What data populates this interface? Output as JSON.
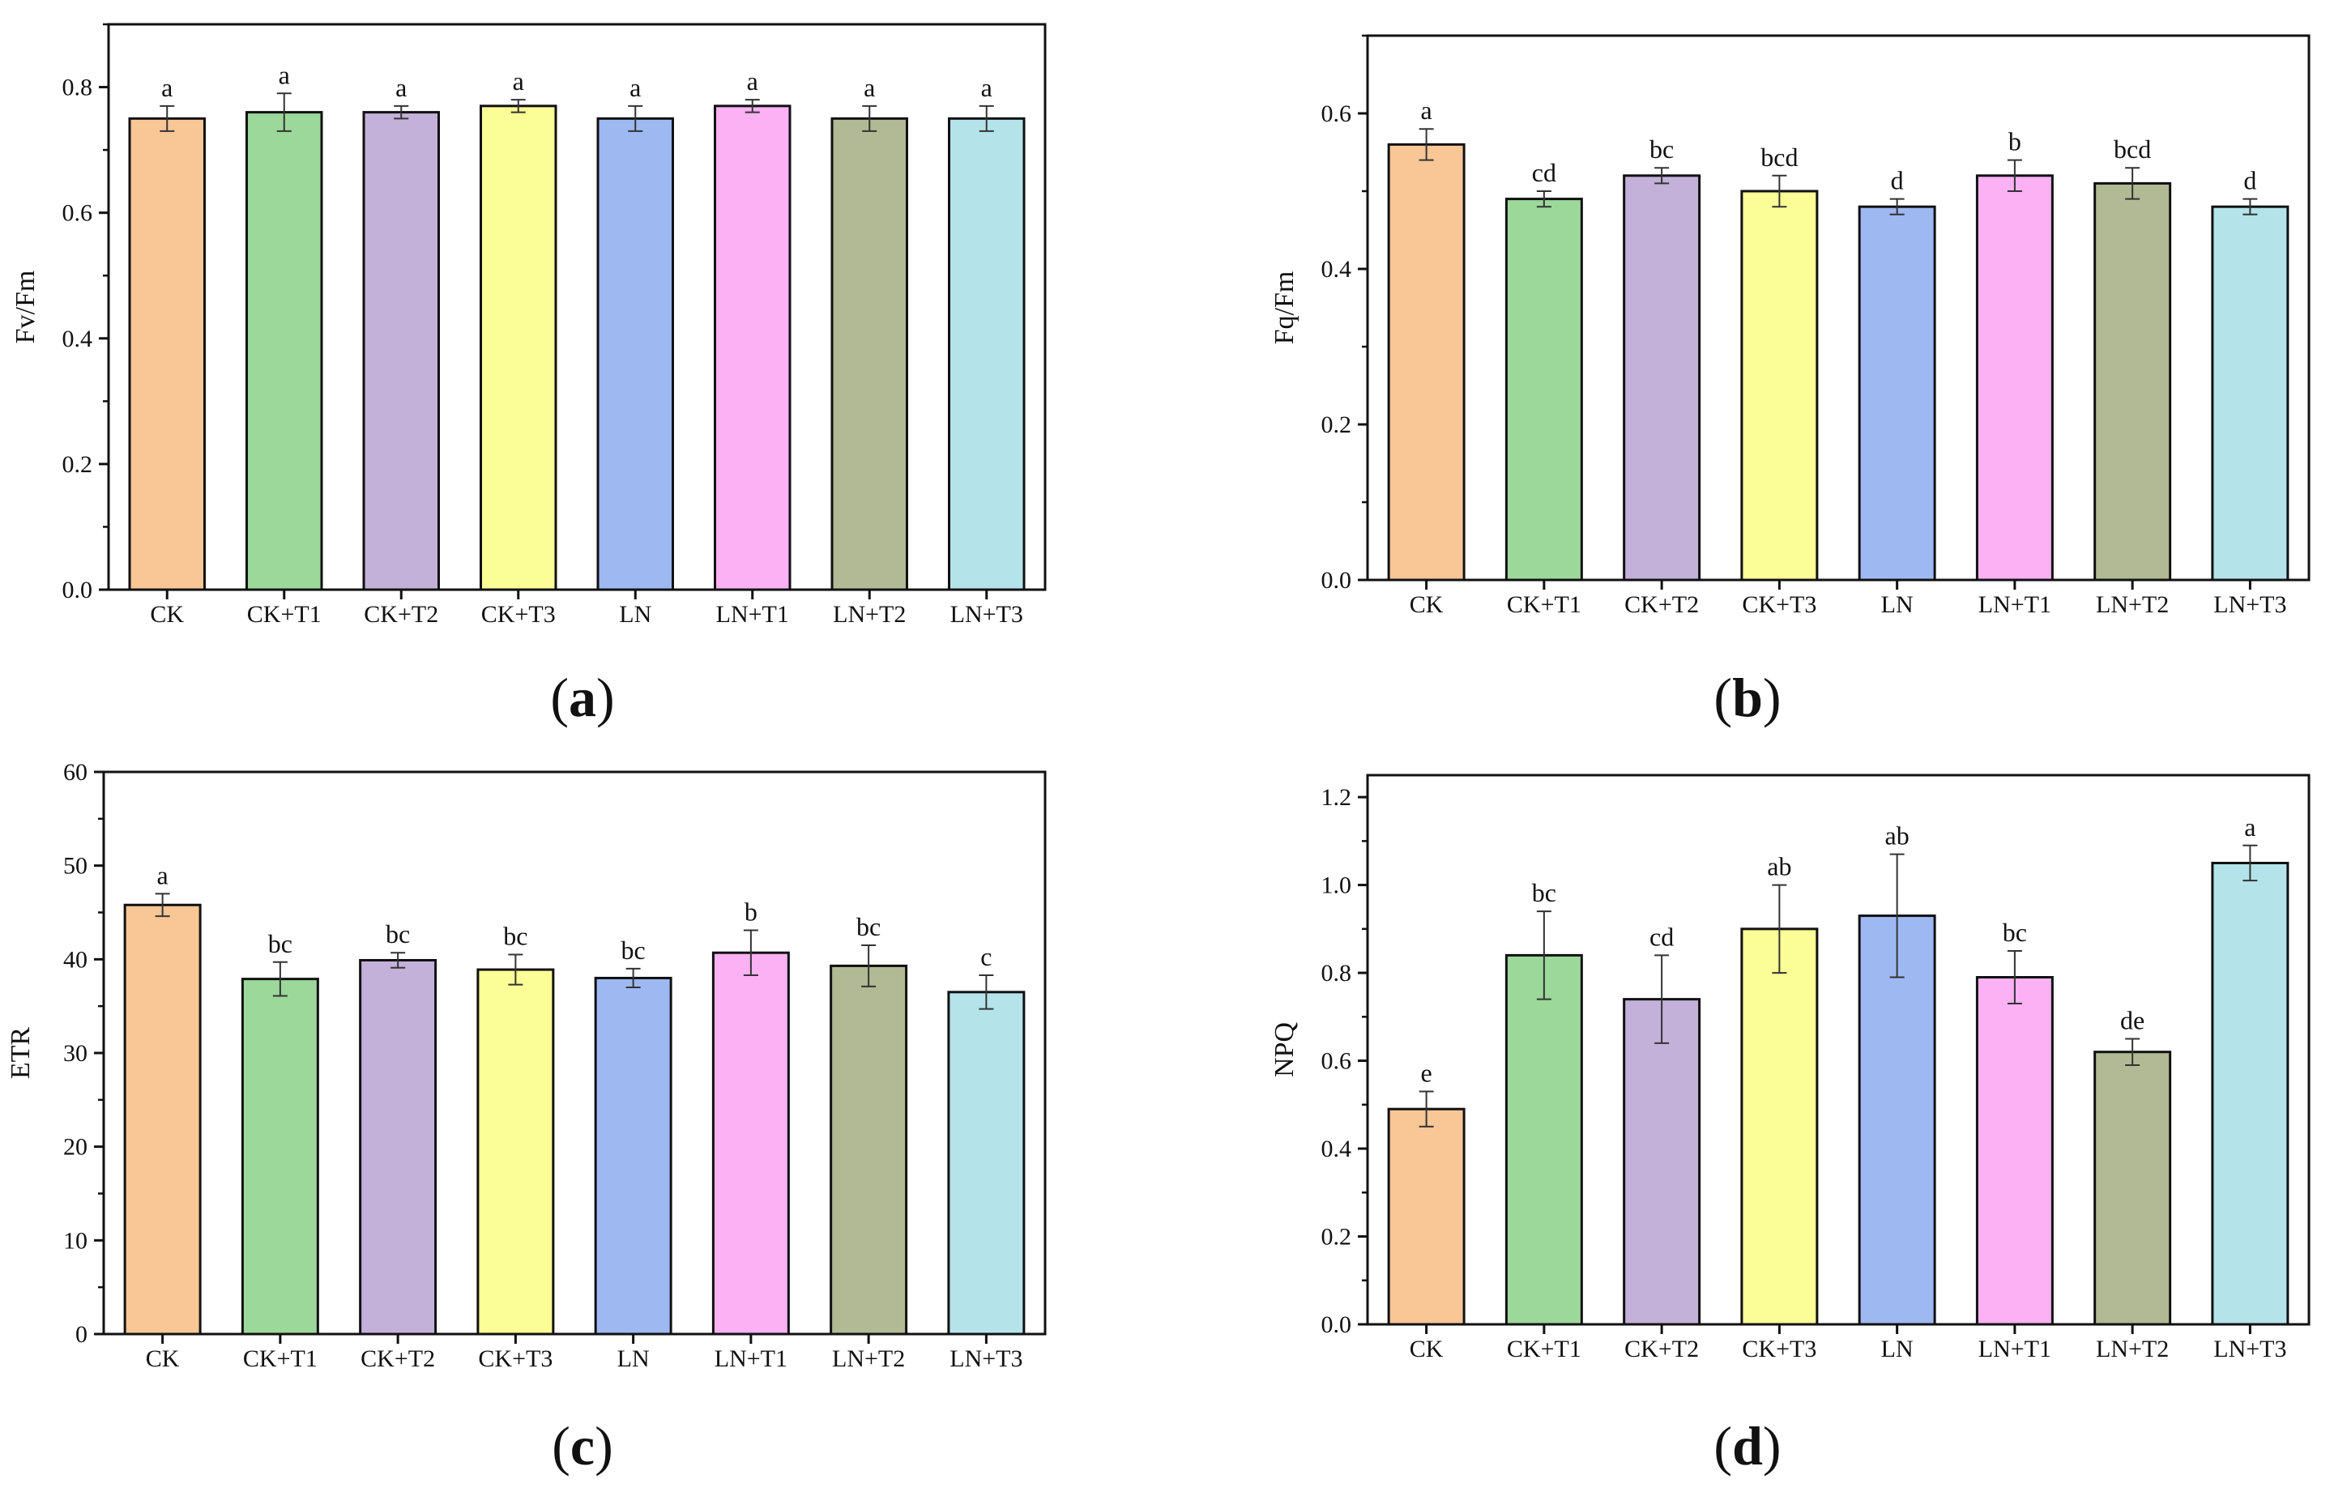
{
  "chart_data": [
    {
      "type": "bar",
      "panel_label": "a",
      "ylabel": "Fv/Fm",
      "ylim": [
        0,
        0.9
      ],
      "yticks": [
        0.0,
        0.2,
        0.4,
        0.6,
        0.8
      ],
      "tick_decimals": 1,
      "categories": [
        "CK",
        "CK+T1",
        "CK+T2",
        "CK+T3",
        "LN",
        "LN+T1",
        "LN+T2",
        "LN+T3"
      ],
      "values": [
        0.75,
        0.76,
        0.76,
        0.77,
        0.75,
        0.77,
        0.75,
        0.75
      ],
      "errors": [
        0.02,
        0.03,
        0.01,
        0.01,
        0.02,
        0.01,
        0.02,
        0.02
      ],
      "letters": [
        "a",
        "a",
        "a",
        "a",
        "a",
        "a",
        "a",
        "a"
      ]
    },
    {
      "type": "bar",
      "panel_label": "b",
      "ylabel": "Fq/Fm",
      "ylim": [
        0,
        0.7
      ],
      "yticks": [
        0.0,
        0.2,
        0.4,
        0.6
      ],
      "tick_decimals": 1,
      "categories": [
        "CK",
        "CK+T1",
        "CK+T2",
        "CK+T3",
        "LN",
        "LN+T1",
        "LN+T2",
        "LN+T3"
      ],
      "values": [
        0.56,
        0.49,
        0.52,
        0.5,
        0.48,
        0.52,
        0.51,
        0.48
      ],
      "errors": [
        0.02,
        0.01,
        0.01,
        0.02,
        0.01,
        0.02,
        0.02,
        0.01
      ],
      "letters": [
        "a",
        "cd",
        "bc",
        "bcd",
        "d",
        "b",
        "bcd",
        "d"
      ]
    },
    {
      "type": "bar",
      "panel_label": "c",
      "ylabel": "ETR",
      "ylim": [
        0,
        60
      ],
      "yticks": [
        0,
        10,
        20,
        30,
        40,
        50,
        60
      ],
      "tick_decimals": 0,
      "categories": [
        "CK",
        "CK+T1",
        "CK+T2",
        "CK+T3",
        "LN",
        "LN+T1",
        "LN+T2",
        "LN+T3"
      ],
      "values": [
        45.8,
        37.9,
        39.9,
        38.9,
        38.0,
        40.7,
        39.3,
        36.5
      ],
      "errors": [
        1.2,
        1.8,
        0.8,
        1.6,
        1.0,
        2.4,
        2.2,
        1.8
      ],
      "letters": [
        "a",
        "bc",
        "bc",
        "bc",
        "bc",
        "b",
        "bc",
        "c"
      ]
    },
    {
      "type": "bar",
      "panel_label": "d",
      "ylabel": "NPQ",
      "ylim": [
        0,
        1.25
      ],
      "yticks": [
        0.0,
        0.2,
        0.4,
        0.6,
        0.8,
        1.0,
        1.2
      ],
      "tick_decimals": 1,
      "categories": [
        "CK",
        "CK+T1",
        "CK+T2",
        "CK+T3",
        "LN",
        "LN+T1",
        "LN+T2",
        "LN+T3"
      ],
      "values": [
        0.49,
        0.84,
        0.74,
        0.9,
        0.93,
        0.79,
        0.62,
        1.05
      ],
      "errors": [
        0.04,
        0.1,
        0.1,
        0.1,
        0.14,
        0.06,
        0.03,
        0.04
      ],
      "letters": [
        "e",
        "bc",
        "cd",
        "ab",
        "ab",
        "bc",
        "de",
        "a"
      ]
    }
  ],
  "colors": [
    "#f9c696",
    "#9bd89a",
    "#c3b1d9",
    "#fbfd97",
    "#9eb8f2",
    "#fbb1f4",
    "#b1b995",
    "#b4e4ea"
  ]
}
